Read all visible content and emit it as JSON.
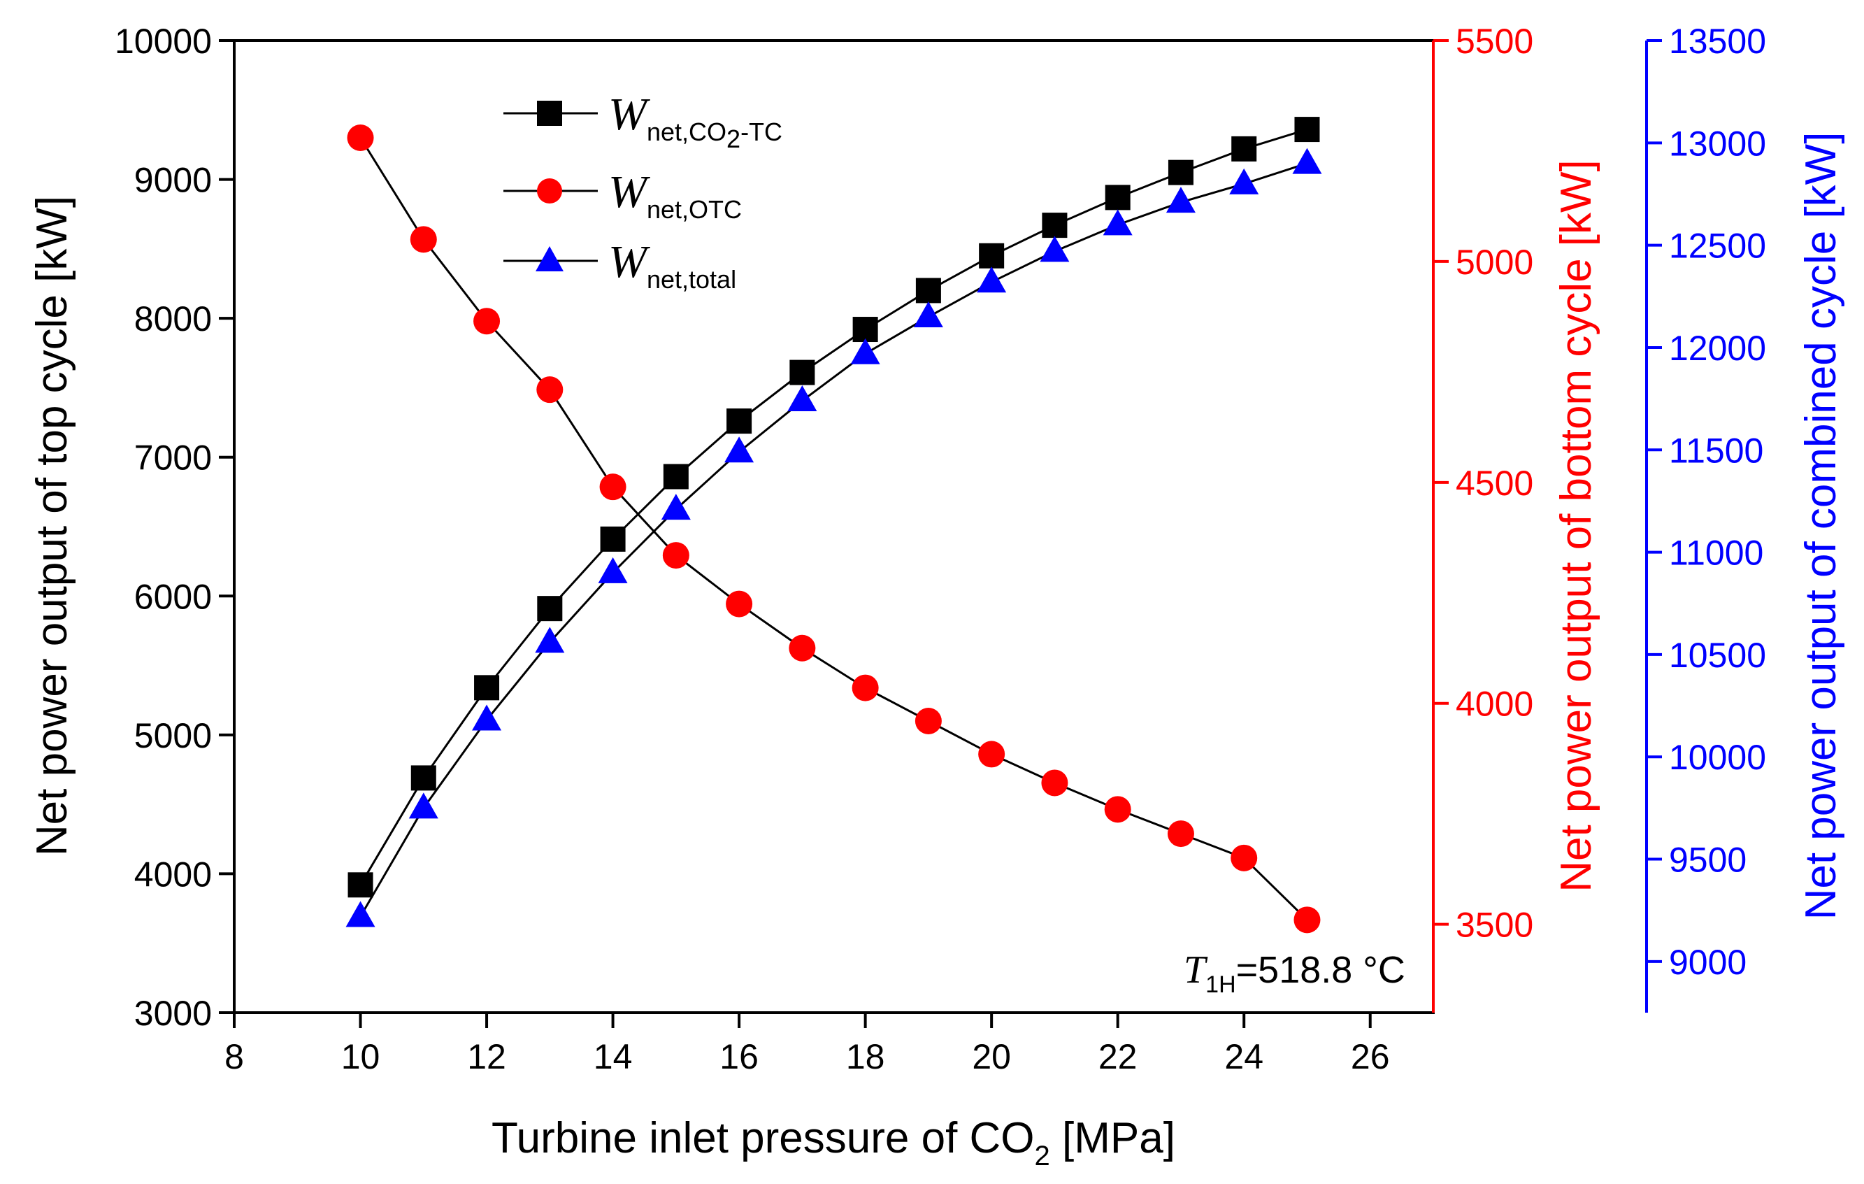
{
  "chart_data": {
    "type": "line",
    "x": [
      10,
      11,
      12,
      13,
      14,
      15,
      16,
      17,
      18,
      19,
      20,
      21,
      22,
      23,
      24,
      25
    ],
    "xlabel_main": "Turbine inlet pressure of CO",
    "xlabel_sub": "2",
    "xlabel_unit": " [MPa]",
    "xlim": [
      8,
      27
    ],
    "xticks": [
      8,
      10,
      12,
      14,
      16,
      18,
      20,
      22,
      24,
      26
    ],
    "axes": {
      "left": {
        "label": "Net power output of top cycle [kW]",
        "ylim": [
          3000,
          10000
        ],
        "ticks": [
          3000,
          4000,
          5000,
          6000,
          7000,
          8000,
          9000,
          10000
        ],
        "color": "#000000"
      },
      "right1": {
        "label": "Net power output of bottom cycle [kW]",
        "ylim": [
          3300,
          5500
        ],
        "ticks": [
          3500,
          4000,
          4500,
          5000,
          5500
        ],
        "color": "#ff0000"
      },
      "right2": {
        "label": "Net power output of combined cycle [kW]",
        "ylim": [
          8750,
          13500
        ],
        "ticks": [
          9000,
          9500,
          10000,
          10500,
          11000,
          11500,
          12000,
          12500,
          13000,
          13500
        ],
        "color": "#0000ff"
      }
    },
    "series": [
      {
        "name": "W_net,CO2-TC",
        "legend_main": "W",
        "legend_sub": "net,CO",
        "legend_sub2": "2",
        "legend_sub3": "-TC",
        "axis": "left",
        "marker": "square",
        "color": "#000000",
        "values": [
          3920,
          4690,
          5340,
          5910,
          6410,
          6860,
          7260,
          7610,
          7920,
          8200,
          8450,
          8670,
          8870,
          9050,
          9220,
          9360
        ]
      },
      {
        "name": "W_net,OTC",
        "legend_main": "W",
        "legend_sub": "net,OTC",
        "axis": "right1",
        "marker": "circle",
        "color": "#ff0000",
        "values": [
          5280,
          5050,
          4865,
          4710,
          4490,
          4335,
          4225,
          4125,
          4035,
          3960,
          3885,
          3820,
          3760,
          3705,
          3650,
          3510
        ]
      },
      {
        "name": "W_net,total",
        "legend_main": "W",
        "legend_sub": "net,total",
        "axis": "right2",
        "marker": "triangle",
        "color": "#0000ff",
        "values": [
          9220,
          9750,
          10180,
          10560,
          10900,
          11210,
          11490,
          11740,
          11970,
          12150,
          12320,
          12470,
          12600,
          12710,
          12800,
          12900
        ]
      }
    ],
    "annotation": {
      "main": "T",
      "sub": "1H",
      "value": "=518.8 °C"
    }
  }
}
